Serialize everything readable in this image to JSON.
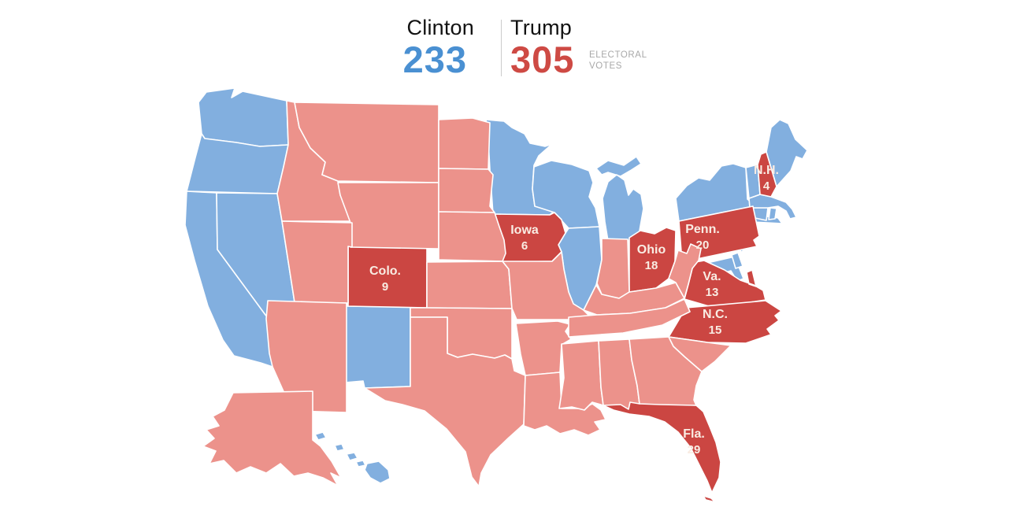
{
  "header": {
    "clinton": {
      "name": "Clinton",
      "votes": "233"
    },
    "trump": {
      "name": "Trump",
      "votes": "305"
    },
    "caption_line1": "ELECTORAL",
    "caption_line2": "VOTES"
  },
  "colors": {
    "dem": "#82afdf",
    "gop": "#ec928b",
    "gop_strong": "#cb4642",
    "dem_text": "#4a90d2",
    "gop_text": "#ce4a44",
    "caption": "#a8a8a8",
    "label_text": "#f9ece3",
    "border": "#ffffff"
  },
  "map": {
    "states": {
      "WA": "dem",
      "OR": "dem",
      "CA": "dem",
      "NV": "dem",
      "NM": "dem",
      "MN": "dem",
      "WI": "dem",
      "MI": "dem",
      "IL": "dem",
      "NY": "dem",
      "NJ": "dem",
      "MD": "dem",
      "DE": "dem",
      "CT": "dem",
      "RI": "dem",
      "MA": "dem",
      "VT": "dem",
      "ME": "dem",
      "HI": "dem",
      "NH": "gop_strong",
      "PA": "gop_strong",
      "OH": "gop_strong",
      "IA": "gop_strong",
      "CO": "gop_strong",
      "VA": "gop_strong",
      "NC": "gop_strong",
      "FL": "gop_strong",
      "ID": "gop",
      "MT": "gop",
      "WY": "gop",
      "UT": "gop",
      "AZ": "gop",
      "ND": "gop",
      "SD": "gop",
      "NE": "gop",
      "KS": "gop",
      "OK": "gop",
      "TX": "gop",
      "MO": "gop",
      "AR": "gop",
      "LA": "gop",
      "IN": "gop",
      "KY": "gop",
      "TN": "gop",
      "MS": "gop",
      "AL": "gop",
      "GA": "gop",
      "SC": "gop",
      "WV": "gop",
      "AK": "gop"
    },
    "labels": [
      {
        "id": "NH",
        "name": "N.H.",
        "votes": "4"
      },
      {
        "id": "PA",
        "name": "Penn.",
        "votes": "20"
      },
      {
        "id": "OH",
        "name": "Ohio",
        "votes": "18"
      },
      {
        "id": "IA",
        "name": "Iowa",
        "votes": "6"
      },
      {
        "id": "CO",
        "name": "Colo.",
        "votes": "9"
      },
      {
        "id": "VA",
        "name": "Va.",
        "votes": "13"
      },
      {
        "id": "NC",
        "name": "N.C.",
        "votes": "15"
      },
      {
        "id": "FL",
        "name": "Fla.",
        "votes": "29"
      }
    ]
  }
}
